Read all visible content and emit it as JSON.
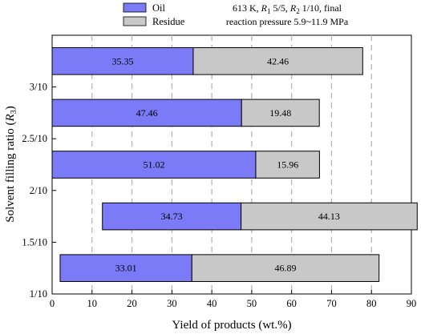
{
  "chart_data": {
    "type": "bar",
    "orientation": "horizontal",
    "stacked": true,
    "categories": [
      "1/10",
      "1.5/10",
      "2/10",
      "2.5/10",
      "3/10"
    ],
    "series": [
      {
        "name": "Oil",
        "values": [
          33.01,
          34.73,
          51.02,
          47.46,
          35.35
        ],
        "color": "#7b7bf7"
      },
      {
        "name": "Residue",
        "values": [
          46.89,
          44.13,
          15.96,
          19.48,
          42.46
        ],
        "color": "#c8c8c8"
      }
    ],
    "bar_start": [
      2,
      12.6,
      0,
      0,
      0
    ],
    "xlabel": "Yield of products (wt.%)",
    "ylabel_parts": [
      "Solvent filling ratio (",
      "R",
      "3",
      ")"
    ],
    "xlim": [
      0,
      90
    ],
    "xticks": [
      "0",
      "10",
      "20",
      "30",
      "40",
      "50",
      "60",
      "70",
      "80",
      "90"
    ],
    "grid": "vertical dashed",
    "legend_position": "top-left",
    "annotation": {
      "line1_parts": [
        "613 K, ",
        "R",
        "1",
        " 5/5, ",
        "R",
        "2",
        " 1/10, final"
      ],
      "line2": "reaction pressure 5.9~11.9 MPa"
    }
  }
}
